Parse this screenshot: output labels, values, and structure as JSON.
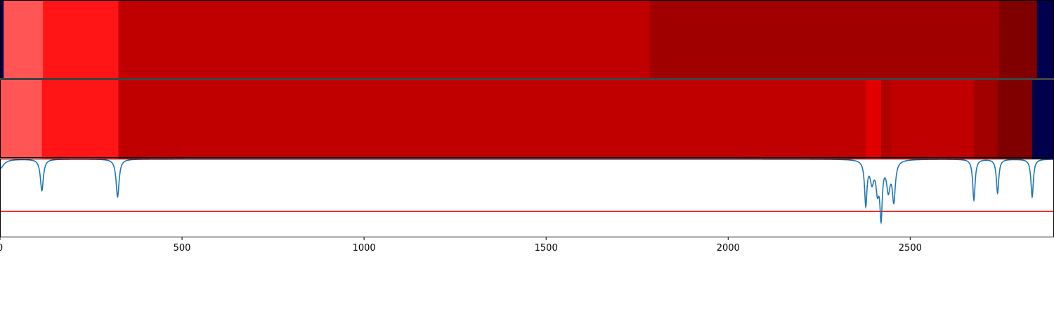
{
  "chart_data": {
    "type": "heatmap",
    "title": "",
    "xlabel": "",
    "ylabel": "",
    "xlim": [
      0,
      2895
    ],
    "grid": false,
    "legend": "none",
    "x_ticks": [
      {
        "value": 0,
        "label": "0"
      },
      {
        "value": 500,
        "label": "500"
      },
      {
        "value": 1000,
        "label": "1000"
      },
      {
        "value": 1500,
        "label": "1500"
      },
      {
        "value": 2000,
        "label": "2000"
      },
      {
        "value": 2500,
        "label": "2500"
      }
    ],
    "bands": [
      {
        "name": "top",
        "segments": [
          {
            "start": 0,
            "end": 10,
            "color": "#00004c"
          },
          {
            "start": 10,
            "end": 118,
            "color": "#ff5555"
          },
          {
            "start": 118,
            "end": 325,
            "color": "#ff1515"
          },
          {
            "start": 325,
            "end": 1785,
            "color": "#c00000"
          },
          {
            "start": 1785,
            "end": 2745,
            "color": "#a00000"
          },
          {
            "start": 2745,
            "end": 2848,
            "color": "#800000"
          },
          {
            "start": 2848,
            "end": 2895,
            "color": "#00004c"
          }
        ]
      },
      {
        "name": "bottom",
        "segments": [
          {
            "start": 0,
            "end": 115,
            "color": "#ff5555"
          },
          {
            "start": 115,
            "end": 325,
            "color": "#ff1515"
          },
          {
            "start": 325,
            "end": 2378,
            "color": "#c00000"
          },
          {
            "start": 2378,
            "end": 2420,
            "color": "#e00000"
          },
          {
            "start": 2420,
            "end": 2448,
            "color": "#b00000"
          },
          {
            "start": 2448,
            "end": 2675,
            "color": "#c00000"
          },
          {
            "start": 2675,
            "end": 2740,
            "color": "#a00000"
          },
          {
            "start": 2740,
            "end": 2835,
            "color": "#800000"
          },
          {
            "start": 2835,
            "end": 2895,
            "color": "#00004c"
          }
        ]
      }
    ],
    "line_series": {
      "color": "#1f77b4",
      "ylim": [
        0,
        1
      ],
      "baseline": 0.995,
      "dips": [
        {
          "x": 0,
          "depth": 0.12,
          "width": 12
        },
        {
          "x": 115,
          "depth": 0.4,
          "width": 5
        },
        {
          "x": 323,
          "depth": 0.48,
          "width": 5
        },
        {
          "x": 2378,
          "depth": 0.56,
          "width": 4
        },
        {
          "x": 2395,
          "depth": 0.26,
          "width": 6
        },
        {
          "x": 2410,
          "depth": 0.34,
          "width": 5
        },
        {
          "x": 2420,
          "depth": 0.68,
          "width": 4
        },
        {
          "x": 2440,
          "depth": 0.36,
          "width": 6
        },
        {
          "x": 2455,
          "depth": 0.5,
          "width": 5
        },
        {
          "x": 2675,
          "depth": 0.52,
          "width": 4
        },
        {
          "x": 2740,
          "depth": 0.43,
          "width": 4
        },
        {
          "x": 2835,
          "depth": 0.48,
          "width": 4
        }
      ]
    },
    "threshold": {
      "value": 0.33,
      "color": "#ff0000"
    }
  }
}
